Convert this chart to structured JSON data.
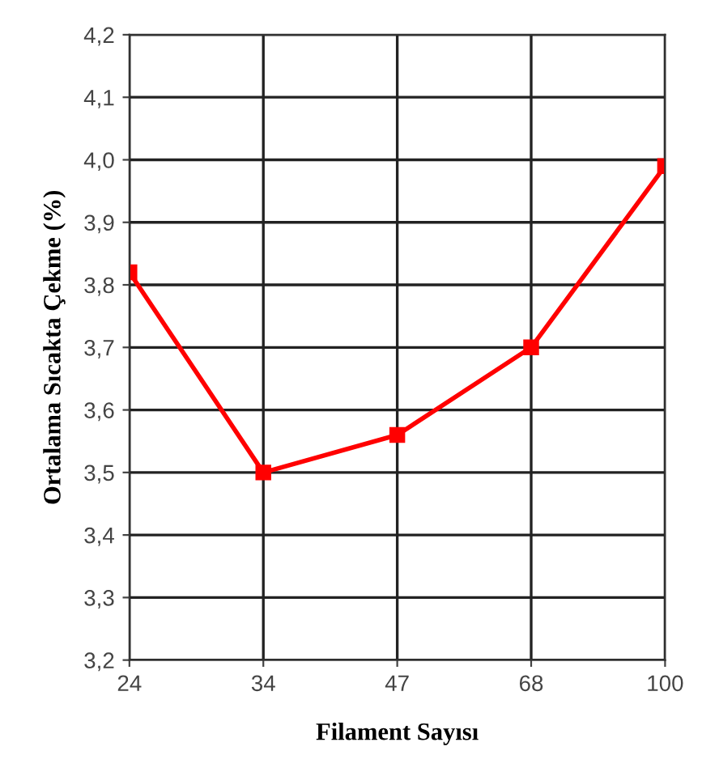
{
  "chart_data": {
    "type": "line",
    "xlabel": "Filament Sayısı",
    "ylabel": "Ortalama Sıcakta Çekme (%)",
    "categories": [
      "24",
      "34",
      "47",
      "68",
      "100"
    ],
    "series": [
      {
        "color": "#ff0000",
        "values": [
          3.82,
          3.5,
          3.56,
          3.7,
          3.99
        ]
      }
    ],
    "ylim": [
      3.2,
      4.2
    ],
    "yticks": [
      {
        "value": 3.2,
        "label": "3,2"
      },
      {
        "value": 3.3,
        "label": "3,3"
      },
      {
        "value": 3.4,
        "label": "3,4"
      },
      {
        "value": 3.5,
        "label": "3,5"
      },
      {
        "value": 3.6,
        "label": "3,6"
      },
      {
        "value": 3.7,
        "label": "3,7"
      },
      {
        "value": 3.8,
        "label": "3,8"
      },
      {
        "value": 3.9,
        "label": "3,9"
      },
      {
        "value": 4.0,
        "label": "4,0"
      },
      {
        "value": 4.1,
        "label": "4,1"
      },
      {
        "value": 4.2,
        "label": "4,2"
      }
    ],
    "grid": true,
    "marker": "square",
    "line_style": "solid"
  }
}
